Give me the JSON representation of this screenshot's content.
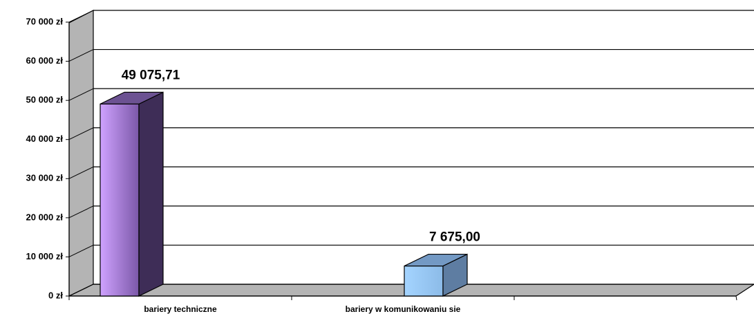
{
  "chart_data": {
    "type": "bar3d",
    "categories": [
      "bariery techniczne",
      "bariery w komunikowaniu sie"
    ],
    "values": [
      49075.71,
      7675
    ],
    "value_labels": [
      "49 075,71",
      "7 675,00"
    ],
    "colors": [
      [
        "#cfa2ff",
        "#7b58a8",
        "#3e2d57",
        "#6c5292"
      ],
      [
        "#a4d4ff",
        "#8cbbe8",
        "#5e7da2",
        "#7399c4"
      ]
    ],
    "ylim": [
      0,
      70000
    ],
    "yticks": [
      {
        "value": 0,
        "label": "0 zł"
      },
      {
        "value": 10000,
        "label": "10 000 zł"
      },
      {
        "value": 20000,
        "label": "20 000 zł"
      },
      {
        "value": 30000,
        "label": "30 000 zł"
      },
      {
        "value": 40000,
        "label": "40 000 zł"
      },
      {
        "value": 50000,
        "label": "50 000 zł"
      },
      {
        "value": 60000,
        "label": "60 000 zł"
      },
      {
        "value": 70000,
        "label": "70 000 zł"
      }
    ],
    "grid": true
  }
}
